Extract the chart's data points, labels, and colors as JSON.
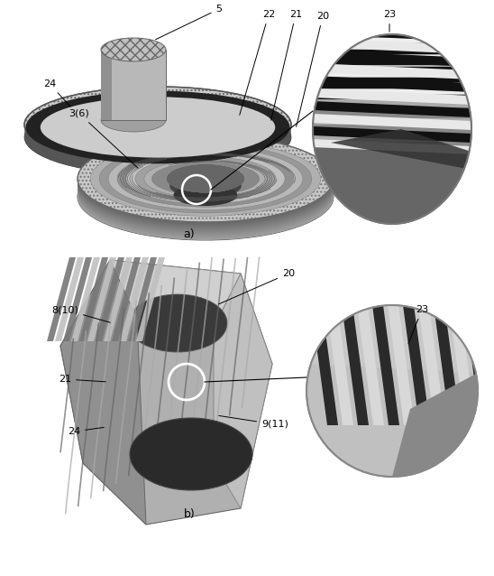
{
  "fig_width": 5.48,
  "fig_height": 6.38,
  "dpi": 100,
  "panel_a_label": "a)",
  "panel_b_label": "b)",
  "gray_light": "#d0d0d0",
  "gray_mid": "#aaaaaa",
  "gray_dark": "#777777",
  "gray_vdark": "#444444",
  "black": "#111111",
  "white": "#ffffff"
}
